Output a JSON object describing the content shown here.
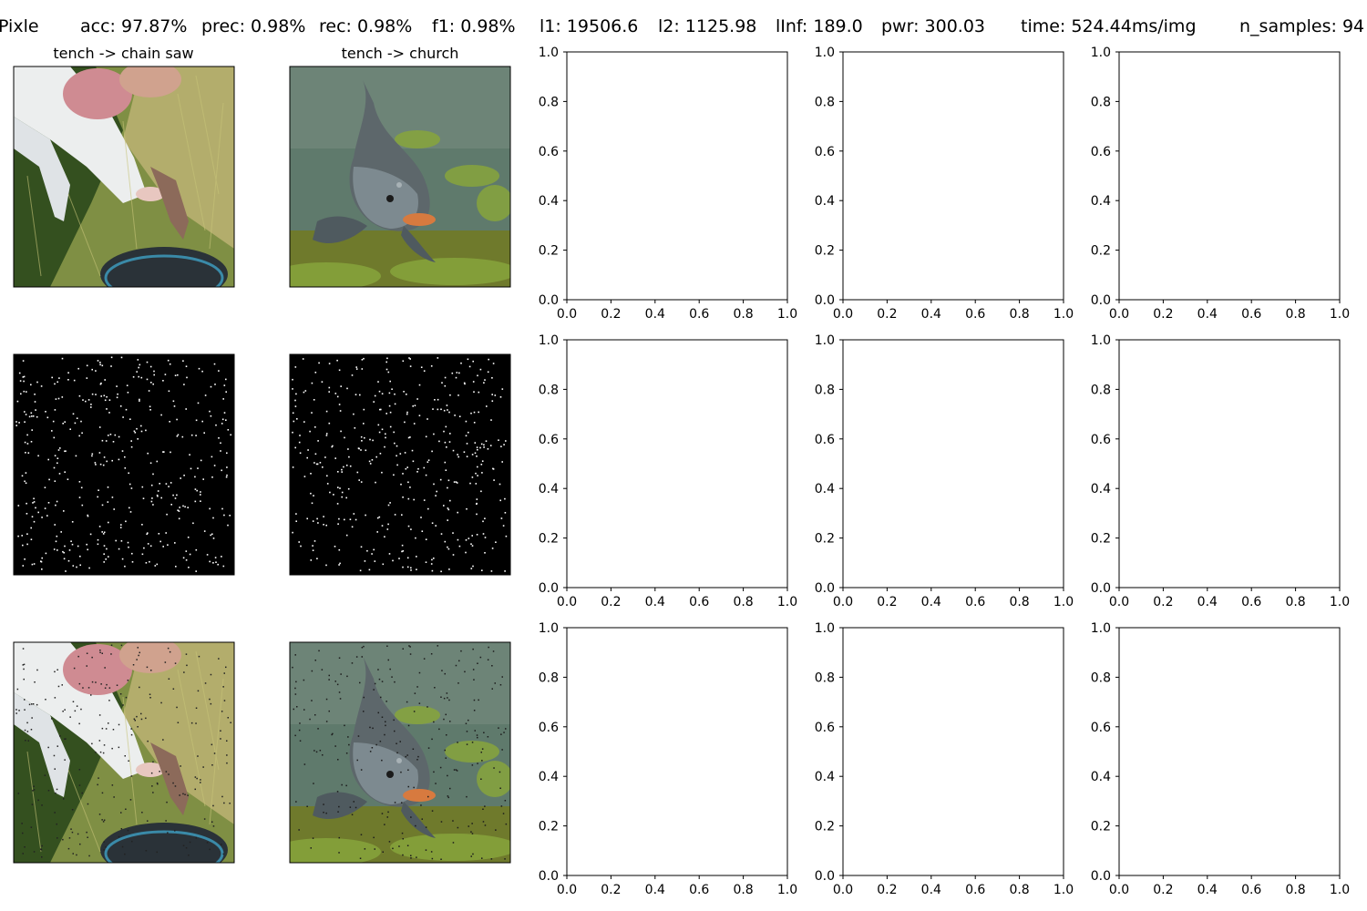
{
  "header": {
    "method": "Pixle",
    "metrics": [
      "acc: 97.87%",
      "prec: 0.98%",
      "rec: 0.98%",
      "f1: 0.98%",
      "l1: 19506.6",
      "l2: 1125.98",
      "lInf: 189.0",
      "pwr: 300.03",
      "time: 524.44ms/img",
      "n_samples: 94"
    ]
  },
  "image_panels": [
    {
      "title": "tench -> chain saw"
    },
    {
      "title": "tench -> church"
    }
  ],
  "image_rows": [
    "original",
    "perturbation",
    "adversarial"
  ],
  "image_content": {
    "scene1": "person in white shirt holding fish on grass",
    "scene2": "fish underwater with green plants"
  },
  "chart_data": {
    "type": "scatter",
    "description_panels": "empty axes grid (3 rows x 3 columns)",
    "rows": 3,
    "cols": 3,
    "xlim": [
      0,
      1
    ],
    "ylim": [
      0,
      1
    ],
    "xticks": [
      "0.0",
      "0.2",
      "0.4",
      "0.6",
      "0.8",
      "1.0"
    ],
    "yticks": [
      "0.0",
      "0.2",
      "0.4",
      "0.6",
      "0.8",
      "1.0"
    ],
    "series": []
  },
  "colors": {
    "axis": "#000000",
    "background": "#ffffff",
    "noise_bg": "#000000",
    "noise_dot": "#ffffff"
  }
}
